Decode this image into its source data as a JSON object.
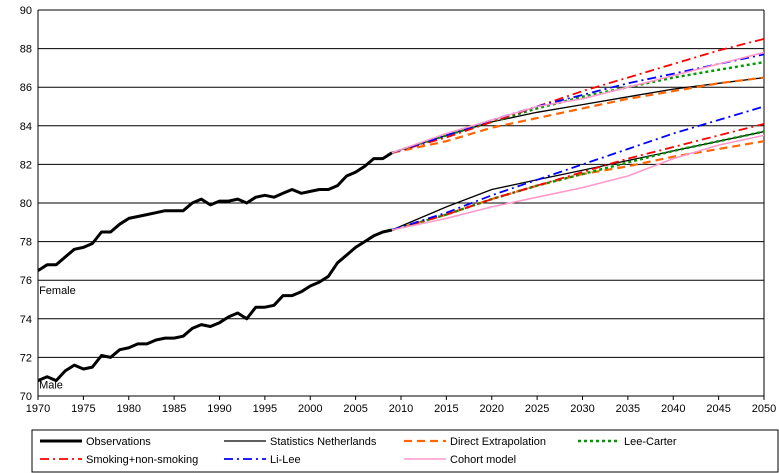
{
  "chart_data": {
    "type": "line",
    "title": "",
    "xlabel": "",
    "ylabel": "",
    "xlim": [
      1970,
      2050
    ],
    "ylim": [
      70,
      90
    ],
    "x_ticks": [
      1970,
      1975,
      1980,
      1985,
      1990,
      1995,
      2000,
      2005,
      2010,
      2015,
      2020,
      2025,
      2030,
      2035,
      2040,
      2045,
      2050
    ],
    "y_ticks": [
      70,
      72,
      74,
      76,
      78,
      80,
      82,
      84,
      86,
      88,
      90
    ],
    "grid": "horizontal",
    "legend_position": "bottom",
    "annotations": [
      {
        "text": "Female",
        "x": 1971,
        "y": 75.5
      },
      {
        "text": "Male",
        "x": 1971,
        "y": 70.6
      }
    ],
    "legend": [
      "Observations",
      "Statistics Netherlands",
      "Direct Extrapolation",
      "Lee-Carter",
      "Smoking+non-smoking",
      "Li-Lee",
      "Cohort model"
    ],
    "series": [
      {
        "name": "Observations",
        "group": "Female",
        "color": "#000000",
        "style": "solid-thick",
        "x": [
          1970,
          1971,
          1972,
          1973,
          1974,
          1975,
          1976,
          1977,
          1978,
          1979,
          1980,
          1981,
          1982,
          1983,
          1984,
          1985,
          1986,
          1987,
          1988,
          1989,
          1990,
          1991,
          1992,
          1993,
          1994,
          1995,
          1996,
          1997,
          1998,
          1999,
          2000,
          2001,
          2002,
          2003,
          2004,
          2005,
          2006,
          2007,
          2008,
          2009
        ],
        "y": [
          76.5,
          76.8,
          76.8,
          77.2,
          77.6,
          77.7,
          77.9,
          78.5,
          78.5,
          78.9,
          79.2,
          79.3,
          79.4,
          79.5,
          79.6,
          79.6,
          79.6,
          80.0,
          80.2,
          79.9,
          80.1,
          80.1,
          80.2,
          80.0,
          80.3,
          80.4,
          80.3,
          80.5,
          80.7,
          80.5,
          80.6,
          80.7,
          80.7,
          80.9,
          81.4,
          81.6,
          81.9,
          82.3,
          82.3,
          82.6
        ]
      },
      {
        "name": "Observations",
        "group": "Male",
        "color": "#000000",
        "style": "solid-thick",
        "x": [
          1970,
          1971,
          1972,
          1973,
          1974,
          1975,
          1976,
          1977,
          1978,
          1979,
          1980,
          1981,
          1982,
          1983,
          1984,
          1985,
          1986,
          1987,
          1988,
          1989,
          1990,
          1991,
          1992,
          1993,
          1994,
          1995,
          1996,
          1997,
          1998,
          1999,
          2000,
          2001,
          2002,
          2003,
          2004,
          2005,
          2006,
          2007,
          2008,
          2009
        ],
        "y": [
          70.8,
          71.0,
          70.8,
          71.3,
          71.6,
          71.4,
          71.5,
          72.1,
          72.0,
          72.4,
          72.5,
          72.7,
          72.7,
          72.9,
          73.0,
          73.0,
          73.1,
          73.5,
          73.7,
          73.6,
          73.8,
          74.1,
          74.3,
          74.0,
          74.6,
          74.6,
          74.7,
          75.2,
          75.2,
          75.4,
          75.7,
          75.9,
          76.2,
          76.9,
          77.3,
          77.7,
          78.0,
          78.3,
          78.5,
          78.6
        ]
      },
      {
        "name": "Statistics Netherlands",
        "group": "Female",
        "color": "#000000",
        "style": "solid-thin",
        "x": [
          2009,
          2015,
          2020,
          2025,
          2030,
          2035,
          2040,
          2045,
          2050
        ],
        "y": [
          82.6,
          83.5,
          84.2,
          84.7,
          85.1,
          85.5,
          85.9,
          86.2,
          86.5
        ]
      },
      {
        "name": "Statistics Netherlands",
        "group": "Male",
        "color": "#000000",
        "style": "solid-thin",
        "x": [
          2009,
          2015,
          2020,
          2025,
          2030,
          2035,
          2040,
          2045,
          2050
        ],
        "y": [
          78.6,
          79.8,
          80.7,
          81.2,
          81.7,
          82.2,
          82.7,
          83.2,
          83.7
        ]
      },
      {
        "name": "Direct Extrapolation",
        "group": "Female",
        "color": "#ff6600",
        "style": "dashed",
        "x": [
          2009,
          2015,
          2020,
          2025,
          2030,
          2035,
          2040,
          2045,
          2050
        ],
        "y": [
          82.6,
          83.2,
          83.9,
          84.4,
          84.9,
          85.4,
          85.8,
          86.2,
          86.5
        ]
      },
      {
        "name": "Direct Extrapolation",
        "group": "Male",
        "color": "#ff6600",
        "style": "dashed",
        "x": [
          2009,
          2015,
          2020,
          2025,
          2030,
          2035,
          2040,
          2045,
          2050
        ],
        "y": [
          78.6,
          79.4,
          80.2,
          80.9,
          81.5,
          81.9,
          82.4,
          82.8,
          83.2
        ]
      },
      {
        "name": "Lee-Carter",
        "group": "Female",
        "color": "#009900",
        "style": "dotted",
        "x": [
          2009,
          2015,
          2020,
          2025,
          2030,
          2035,
          2040,
          2045,
          2050
        ],
        "y": [
          82.6,
          83.5,
          84.2,
          84.9,
          85.5,
          86.0,
          86.5,
          86.9,
          87.3
        ]
      },
      {
        "name": "Lee-Carter",
        "group": "Male",
        "color": "#009900",
        "style": "dotted",
        "x": [
          2009,
          2015,
          2020,
          2025,
          2030,
          2035,
          2040,
          2045,
          2050
        ],
        "y": [
          78.6,
          79.4,
          80.2,
          80.9,
          81.5,
          82.1,
          82.7,
          83.2,
          83.7
        ]
      },
      {
        "name": "Smoking+non-smoking",
        "group": "Female",
        "color": "#ff0000",
        "style": "dashdot",
        "x": [
          2009,
          2015,
          2020,
          2025,
          2030,
          2035,
          2040,
          2045,
          2050
        ],
        "y": [
          82.6,
          83.4,
          84.2,
          85.0,
          85.8,
          86.5,
          87.2,
          87.9,
          88.5
        ]
      },
      {
        "name": "Smoking+non-smoking",
        "group": "Male",
        "color": "#ff0000",
        "style": "dashdot",
        "x": [
          2009,
          2015,
          2020,
          2025,
          2030,
          2035,
          2040,
          2045,
          2050
        ],
        "y": [
          78.6,
          79.4,
          80.2,
          80.9,
          81.6,
          82.3,
          82.9,
          83.5,
          84.1
        ]
      },
      {
        "name": "Li-Lee",
        "group": "Female",
        "color": "#0000ff",
        "style": "dashdot",
        "x": [
          2009,
          2015,
          2020,
          2025,
          2030,
          2035,
          2040,
          2045,
          2050
        ],
        "y": [
          82.6,
          83.5,
          84.3,
          85.0,
          85.6,
          86.2,
          86.7,
          87.2,
          87.7
        ]
      },
      {
        "name": "Li-Lee",
        "group": "Male",
        "color": "#0000ff",
        "style": "dashdot",
        "x": [
          2009,
          2015,
          2020,
          2025,
          2030,
          2035,
          2040,
          2045,
          2050
        ],
        "y": [
          78.6,
          79.5,
          80.4,
          81.2,
          82.0,
          82.8,
          83.6,
          84.3,
          85.0
        ]
      },
      {
        "name": "Cohort model",
        "group": "Female",
        "color": "#ff99cc",
        "style": "solid",
        "x": [
          2009,
          2015,
          2020,
          2025,
          2030,
          2035,
          2040,
          2045,
          2050
        ],
        "y": [
          82.6,
          83.6,
          84.3,
          85.0,
          85.4,
          86.0,
          86.6,
          87.2,
          87.8
        ]
      },
      {
        "name": "Cohort model",
        "group": "Male",
        "color": "#ff99cc",
        "style": "solid",
        "x": [
          2009,
          2015,
          2020,
          2025,
          2030,
          2035,
          2040,
          2045,
          2050
        ],
        "y": [
          78.6,
          79.2,
          79.8,
          80.3,
          80.8,
          81.4,
          82.3,
          83.0,
          83.5
        ]
      }
    ]
  },
  "legend_items": [
    {
      "label": "Observations",
      "color": "#000000",
      "style": "solid-thick"
    },
    {
      "label": "Statistics Netherlands",
      "color": "#000000",
      "style": "solid-thin"
    },
    {
      "label": "Direct Extrapolation",
      "color": "#ff6600",
      "style": "dashed"
    },
    {
      "label": "Lee-Carter",
      "color": "#009900",
      "style": "dotted"
    },
    {
      "label": "Smoking+non-smoking",
      "color": "#ff0000",
      "style": "dashdot"
    },
    {
      "label": "Li-Lee",
      "color": "#0000ff",
      "style": "dashdot"
    },
    {
      "label": "Cohort model",
      "color": "#ff99cc",
      "style": "solid"
    }
  ]
}
